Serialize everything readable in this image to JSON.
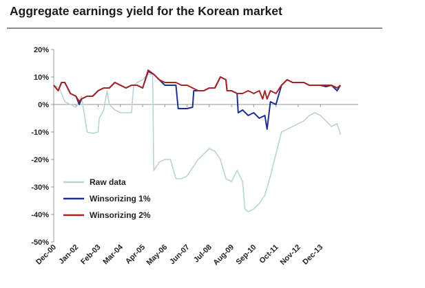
{
  "title": "Aggregate earnings yield for the Korean market",
  "chart_data": {
    "type": "line",
    "title": "Aggregate earnings yield for the Korean market",
    "xlabel": "",
    "ylabel": "",
    "ylim": [
      -50,
      20
    ],
    "yticks": [
      "20%",
      "10%",
      "0%",
      "-10%",
      "-20%",
      "-30%",
      "-40%",
      "-50%"
    ],
    "yticks_values": [
      20,
      10,
      0,
      -10,
      -20,
      -30,
      -40,
      -50
    ],
    "categories": [
      "Dec-00",
      "Jan-02",
      "Feb-03",
      "Mar-04",
      "Apr-05",
      "May-06",
      "Jun-07",
      "Jul-08",
      "Aug-09",
      "Sep-10",
      "Oct-11",
      "Nov-12",
      "Dec-13"
    ],
    "x_range": [
      0,
      13.7
    ],
    "grid": false,
    "legend_position": "bottom-left",
    "series": [
      {
        "name": "Raw data",
        "color": "#b9d4d6",
        "points": [
          [
            0,
            7
          ],
          [
            0.25,
            6
          ],
          [
            0.5,
            1
          ],
          [
            0.75,
            0
          ],
          [
            1,
            -1
          ],
          [
            1.25,
            3
          ],
          [
            1.5,
            -10
          ],
          [
            1.75,
            -10.5
          ],
          [
            2,
            -10
          ],
          [
            2.05,
            -5
          ],
          [
            2.25,
            -2
          ],
          [
            2.4,
            5
          ],
          [
            2.5,
            0
          ],
          [
            2.75,
            -2
          ],
          [
            3,
            -3
          ],
          [
            3.25,
            -3
          ],
          [
            3.5,
            -3
          ],
          [
            3.6,
            7
          ],
          [
            3.75,
            8
          ],
          [
            4,
            9
          ],
          [
            4.25,
            11
          ],
          [
            4.45,
            11
          ],
          [
            4.5,
            -24
          ],
          [
            4.75,
            -21
          ],
          [
            5,
            -20
          ],
          [
            5.25,
            -20
          ],
          [
            5.5,
            -27
          ],
          [
            5.75,
            -27
          ],
          [
            6,
            -26
          ],
          [
            6.25,
            -23
          ],
          [
            6.5,
            -20
          ],
          [
            6.75,
            -18
          ],
          [
            7,
            -16
          ],
          [
            7.25,
            -17
          ],
          [
            7.5,
            -20
          ],
          [
            7.75,
            -27
          ],
          [
            8,
            -28
          ],
          [
            8.25,
            -24
          ],
          [
            8.5,
            -28
          ],
          [
            8.6,
            -38
          ],
          [
            8.75,
            -39
          ],
          [
            9,
            -38
          ],
          [
            9.25,
            -36
          ],
          [
            9.5,
            -33
          ],
          [
            9.75,
            -26
          ],
          [
            10,
            -18
          ],
          [
            10.25,
            -10
          ],
          [
            10.5,
            -9
          ],
          [
            10.75,
            -8
          ],
          [
            11,
            -7
          ],
          [
            11.25,
            -6
          ],
          [
            11.5,
            -4
          ],
          [
            11.75,
            -3
          ],
          [
            12,
            -4
          ],
          [
            12.25,
            -6
          ],
          [
            12.5,
            -8
          ],
          [
            12.75,
            -7
          ],
          [
            12.9,
            -11
          ]
        ]
      },
      {
        "name": "Winsorizing 1%",
        "color": "#1f2f8c",
        "points": [
          [
            0,
            7
          ],
          [
            0.2,
            5
          ],
          [
            0.35,
            8
          ],
          [
            0.5,
            8
          ],
          [
            0.75,
            4
          ],
          [
            1,
            3
          ],
          [
            1.15,
            0
          ],
          [
            1.25,
            2
          ],
          [
            1.5,
            3
          ],
          [
            1.75,
            3
          ],
          [
            2,
            5
          ],
          [
            2.25,
            6
          ],
          [
            2.5,
            6
          ],
          [
            2.75,
            8
          ],
          [
            3,
            7
          ],
          [
            3.25,
            6
          ],
          [
            3.5,
            7
          ],
          [
            3.75,
            7
          ],
          [
            4,
            6
          ],
          [
            4.25,
            12
          ],
          [
            4.5,
            11
          ],
          [
            4.75,
            9
          ],
          [
            5,
            7
          ],
          [
            5.25,
            7
          ],
          [
            5.5,
            7
          ],
          [
            5.6,
            -1.5
          ],
          [
            5.75,
            -1.5
          ],
          [
            6,
            -1.5
          ],
          [
            6.25,
            -1
          ],
          [
            6.3,
            5
          ],
          [
            6.5,
            5
          ],
          [
            6.75,
            5
          ],
          [
            7,
            6
          ],
          [
            7.25,
            6
          ],
          [
            7.5,
            10
          ],
          [
            7.75,
            9
          ],
          [
            7.8,
            5
          ],
          [
            8,
            5
          ],
          [
            8.25,
            4
          ],
          [
            8.3,
            -3
          ],
          [
            8.5,
            -2
          ],
          [
            8.75,
            -4
          ],
          [
            9,
            -3
          ],
          [
            9.25,
            -5
          ],
          [
            9.5,
            -4
          ],
          [
            9.6,
            -9
          ],
          [
            9.75,
            1
          ],
          [
            10,
            0
          ],
          [
            10.25,
            7
          ],
          [
            10.5,
            9
          ],
          [
            10.75,
            8
          ],
          [
            11,
            8
          ],
          [
            11.25,
            8
          ],
          [
            11.5,
            7
          ],
          [
            11.75,
            7
          ],
          [
            12,
            7
          ],
          [
            12.25,
            6.5
          ],
          [
            12.5,
            7
          ],
          [
            12.75,
            5
          ],
          [
            12.9,
            7
          ]
        ]
      },
      {
        "name": "Winsorizing 2%",
        "color": "#a82424",
        "points": [
          [
            0,
            7
          ],
          [
            0.2,
            5
          ],
          [
            0.35,
            8
          ],
          [
            0.5,
            8
          ],
          [
            0.75,
            4
          ],
          [
            1,
            3
          ],
          [
            1.15,
            1
          ],
          [
            1.25,
            2
          ],
          [
            1.5,
            3
          ],
          [
            1.75,
            3
          ],
          [
            2,
            5
          ],
          [
            2.25,
            6
          ],
          [
            2.5,
            6
          ],
          [
            2.75,
            8
          ],
          [
            3,
            7
          ],
          [
            3.25,
            6
          ],
          [
            3.5,
            7
          ],
          [
            3.75,
            7
          ],
          [
            4,
            6
          ],
          [
            4.25,
            12.5
          ],
          [
            4.5,
            11
          ],
          [
            4.75,
            9
          ],
          [
            5,
            8
          ],
          [
            5.25,
            8
          ],
          [
            5.5,
            8
          ],
          [
            5.75,
            7
          ],
          [
            6,
            7
          ],
          [
            6.25,
            6
          ],
          [
            6.5,
            5
          ],
          [
            6.75,
            5
          ],
          [
            7,
            6
          ],
          [
            7.25,
            6
          ],
          [
            7.5,
            10
          ],
          [
            7.75,
            9
          ],
          [
            7.8,
            5
          ],
          [
            8,
            5
          ],
          [
            8.25,
            4
          ],
          [
            8.5,
            4
          ],
          [
            8.75,
            5
          ],
          [
            9,
            4
          ],
          [
            9.25,
            5
          ],
          [
            9.4,
            2
          ],
          [
            9.5,
            5
          ],
          [
            9.6,
            2
          ],
          [
            9.75,
            5
          ],
          [
            10,
            4
          ],
          [
            10.25,
            7
          ],
          [
            10.5,
            9
          ],
          [
            10.75,
            8
          ],
          [
            11,
            8
          ],
          [
            11.25,
            8
          ],
          [
            11.5,
            7
          ],
          [
            11.75,
            7
          ],
          [
            12,
            7
          ],
          [
            12.25,
            7
          ],
          [
            12.5,
            7
          ],
          [
            12.75,
            6
          ],
          [
            12.9,
            7
          ]
        ]
      }
    ]
  }
}
